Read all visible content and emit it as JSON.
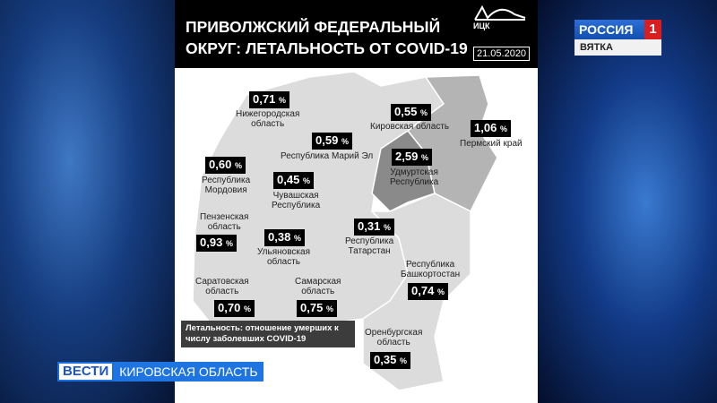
{
  "header": {
    "title_line1": "ПРИВОЛЖСКИЙ ФЕДЕРАЛЬНЫЙ",
    "title_line2": "ОКРУГ: ЛЕТАЛЬНОСТЬ ОТ COVID-19",
    "logo": "ИЦК",
    "date": "21.05.2020"
  },
  "regions": [
    {
      "name": "Нижегородская\nобласть",
      "value": "0,71",
      "unit": "%"
    },
    {
      "name": "Кировская область",
      "value": "0,55",
      "unit": "%"
    },
    {
      "name": "Пермский край",
      "value": "1,06",
      "unit": "%"
    },
    {
      "name": "Республика Марий Эл",
      "value": "0,59",
      "unit": "%"
    },
    {
      "name": "Удмуртская\nРеспублика",
      "value": "2,59",
      "unit": "%"
    },
    {
      "name": "Республика\nМордовия",
      "value": "0,60",
      "unit": "%"
    },
    {
      "name": "Чувашская\nРеспублика",
      "value": "0,45",
      "unit": "%"
    },
    {
      "name": "Пензенская\nобласть",
      "value": "0,93",
      "unit": "%"
    },
    {
      "name": "Ульяновская\nобласть",
      "value": "0,38",
      "unit": "%"
    },
    {
      "name": "Республика\nТатарстан",
      "value": "0,31",
      "unit": "%"
    },
    {
      "name": "Республика\nБашкортостан",
      "value": "0,74",
      "unit": "%"
    },
    {
      "name": "Саратовская\nобласть",
      "value": "0,70",
      "unit": "%"
    },
    {
      "name": "Самарская\nобласть",
      "value": "0,75",
      "unit": "%"
    },
    {
      "name": "Оренбургская\nобласть",
      "value": "0,35",
      "unit": "%"
    }
  ],
  "note": "Летальность: отношение умерших к числу заболевших COVID-19",
  "channel": {
    "name": "РОССИЯ",
    "number": "1",
    "region": "ВЯТКА"
  },
  "ticker": {
    "show": "ВЕСТИ",
    "region": "КИРОВСКАЯ ОБЛАСТЬ"
  },
  "colors": {
    "map_light": "#dcdcdc",
    "map_medium": "#b4b4b4",
    "map_dark": "#8a8a8a",
    "label_bg": "#000000",
    "accent": "#1e74e0"
  }
}
